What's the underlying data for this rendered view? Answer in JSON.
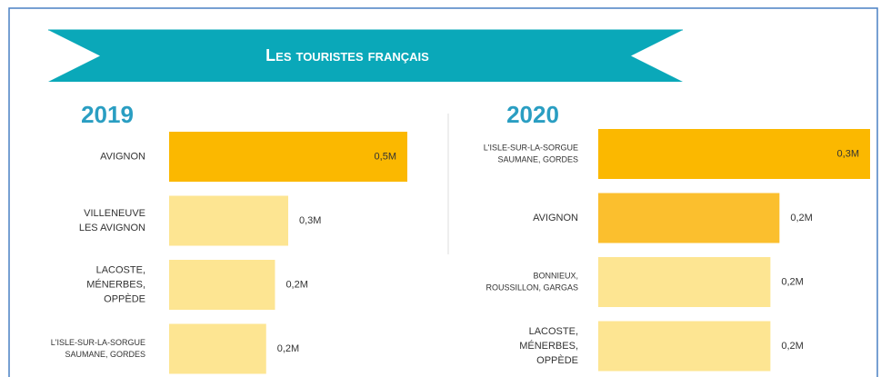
{
  "title": "Les touristes français",
  "chart_data": [
    {
      "type": "bar",
      "title": "2019",
      "categories": [
        [
          "AVIGNON"
        ],
        [
          "VILLENEUVE",
          "LES AVIGNON"
        ],
        [
          "LACOSTE,",
          "MÉNERBES,",
          "OPPÈDE"
        ],
        [
          "L'ISLE-SUR-LA-SORGUE",
          "SAUMANE, GORDES"
        ]
      ],
      "values": [
        0.54,
        0.27,
        0.24,
        0.22
      ],
      "value_labels": [
        "0,5M",
        "0,3M",
        "0,2M",
        "0,2M"
      ],
      "colors": [
        "#fbb800",
        "#fde592",
        "#fde592",
        "#fde592"
      ]
    },
    {
      "type": "bar",
      "title": "2020",
      "categories": [
        [
          "L'ISLE-SUR-LA-SORGUE",
          "SAUMANE, GORDES"
        ],
        [
          "AVIGNON"
        ],
        [
          "BONNIEUX,",
          "ROUSSILLON, GARGAS"
        ],
        [
          "LACOSTE,",
          "MÉNERBES,",
          "OPPÈDE"
        ]
      ],
      "values": [
        0.3,
        0.2,
        0.19,
        0.19
      ],
      "value_labels": [
        "0,3M",
        "0,2M",
        "0,2M",
        "0,2M"
      ],
      "colors": [
        "#fbb800",
        "#fbbf2e",
        "#fde592",
        "#fde592"
      ]
    }
  ]
}
